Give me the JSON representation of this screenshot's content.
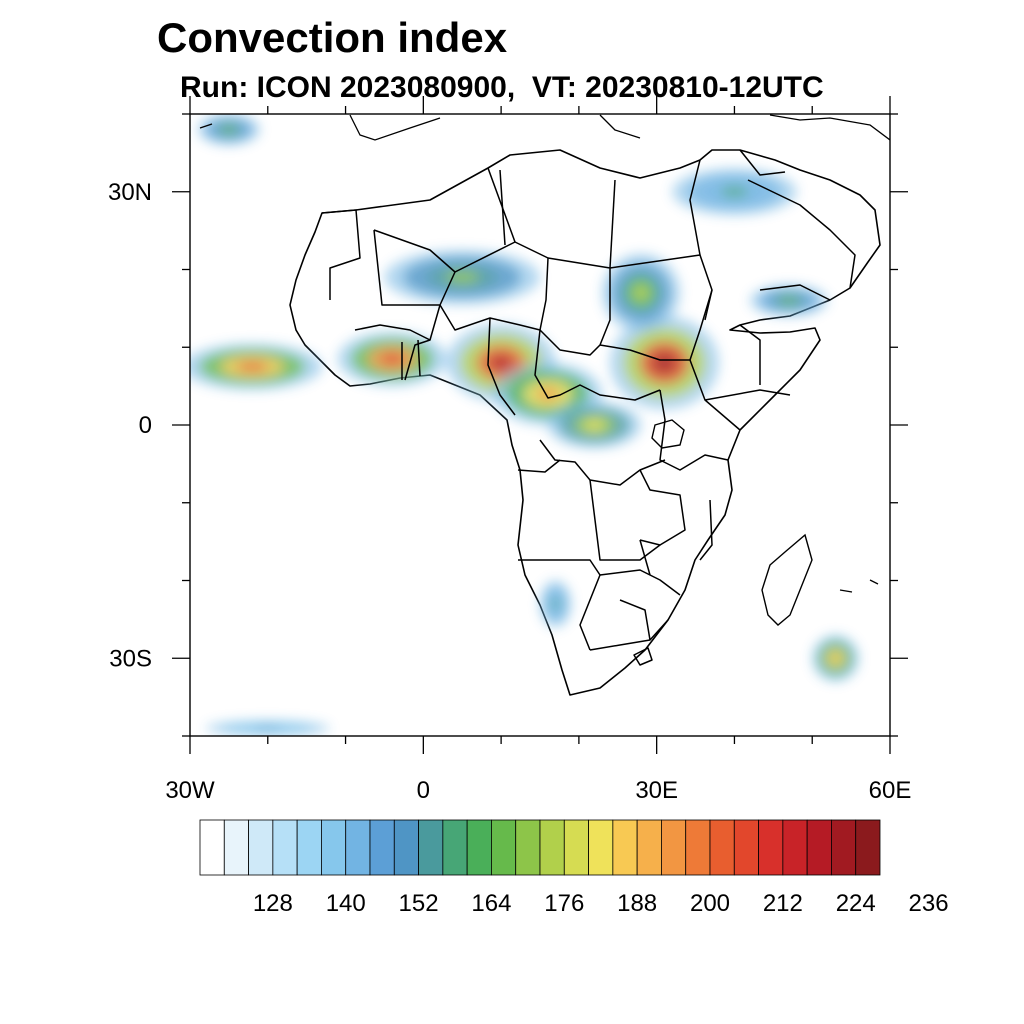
{
  "title": "Convection index",
  "subtitle": "Run: ICON 2023080900,  VT: 20230810-12UTC",
  "map": {
    "lon_range": [
      -30,
      60
    ],
    "lat_range": [
      -40,
      40
    ],
    "x_ticks": [
      {
        "lon": -30,
        "label": "30W"
      },
      {
        "lon": 0,
        "label": "0"
      },
      {
        "lon": 30,
        "label": "30E"
      },
      {
        "lon": 60,
        "label": "60E"
      }
    ],
    "y_ticks": [
      {
        "lat": 30,
        "label": "30N"
      },
      {
        "lat": 0,
        "label": "0"
      },
      {
        "lat": -30,
        "label": "30S"
      }
    ],
    "minor_lon_step": 10,
    "minor_lat_step": 10,
    "field_regions": [
      {
        "name": "itcz-atlantic",
        "lon": -22,
        "lat": 7.5,
        "rlon": 9,
        "rlat": 3,
        "value": 184
      },
      {
        "name": "west-africa",
        "lon": -4,
        "lat": 8.5,
        "rlon": 7,
        "rlat": 3.5,
        "value": 190
      },
      {
        "name": "nigeria-chad",
        "lon": 10,
        "lat": 8,
        "rlon": 7,
        "rlat": 5,
        "value": 200
      },
      {
        "name": "central-africa",
        "lon": 16,
        "lat": 4,
        "rlon": 7,
        "rlat": 4,
        "value": 178
      },
      {
        "name": "south-sudan-ethiopia",
        "lon": 31,
        "lat": 8,
        "rlon": 7,
        "rlat": 6,
        "value": 205
      },
      {
        "name": "congo-basin",
        "lon": 22,
        "lat": 0,
        "rlon": 6,
        "rlat": 3,
        "value": 166
      },
      {
        "name": "sahel-north",
        "lon": 5,
        "lat": 19,
        "rlon": 10,
        "rlat": 3.5,
        "value": 152
      },
      {
        "name": "sudan-north",
        "lon": 28,
        "lat": 17,
        "rlon": 5,
        "rlat": 5,
        "value": 158
      },
      {
        "name": "arabia",
        "lon": 47,
        "lat": 16,
        "rlon": 5,
        "rlat": 2,
        "value": 150
      },
      {
        "name": "mediterranean",
        "lon": 40,
        "lat": 30,
        "rlon": 8,
        "rlat": 3,
        "value": 140
      },
      {
        "name": "madagascar-east",
        "lon": 53,
        "lat": -30,
        "rlon": 3,
        "rlat": 3,
        "value": 175
      },
      {
        "name": "namibia",
        "lon": 17,
        "lat": -23,
        "rlon": 2,
        "rlat": 3,
        "value": 140
      },
      {
        "name": "north-atlantic",
        "lon": -25,
        "lat": 38,
        "rlon": 4,
        "rlat": 2,
        "value": 150
      },
      {
        "name": "south-atlantic",
        "lon": -20,
        "lat": -39,
        "rlon": 8,
        "rlat": 1,
        "value": 134
      }
    ]
  },
  "colorbar": {
    "colors": [
      "#ffffff",
      "#e8f4fb",
      "#cfe9f8",
      "#b6e0f7",
      "#9cd5f3",
      "#86c7ec",
      "#72b4e3",
      "#5c9fd6",
      "#4f95c5",
      "#4a9a9d",
      "#47a676",
      "#4aaf59",
      "#66ba4b",
      "#8dc549",
      "#b1d04b",
      "#d6dc52",
      "#efe25a",
      "#f8c953",
      "#f6b04b",
      "#f29642",
      "#ee7a37",
      "#e85e2f",
      "#e2472c",
      "#d8302b",
      "#c82328",
      "#b51b25",
      "#a11a21",
      "#8b1a1d"
    ],
    "tick_labels": [
      "128",
      "140",
      "152",
      "164",
      "176",
      "188",
      "200",
      "212",
      "224",
      "236"
    ]
  }
}
